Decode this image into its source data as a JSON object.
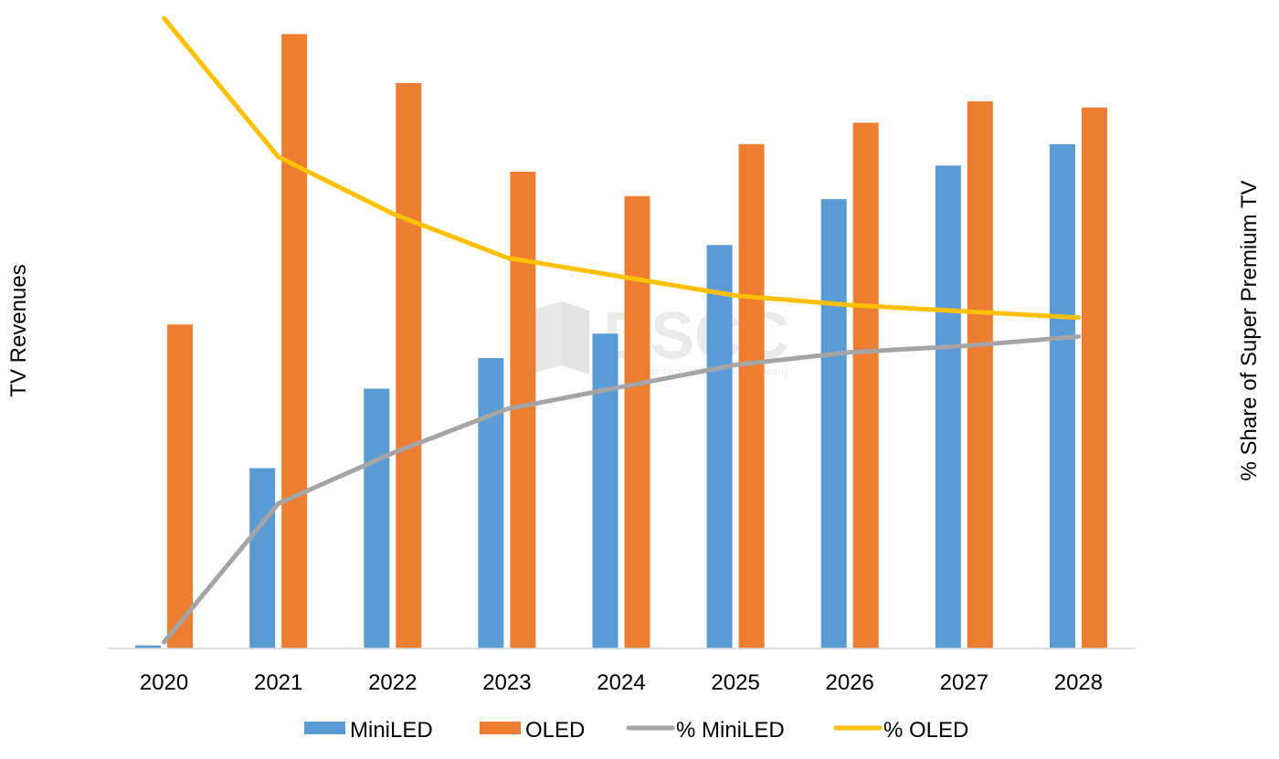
{
  "chart_data": {
    "type": "bar",
    "title": "",
    "categories": [
      "2020",
      "2021",
      "2022",
      "2023",
      "2024",
      "2025",
      "2026",
      "2027",
      "2028"
    ],
    "ylabel": "TV Revenues",
    "y2label": "% Share of Super Premium TV",
    "y_ticks_shown": false,
    "ylim": [
      0,
      100
    ],
    "y2lim": [
      0,
      100
    ],
    "grid": false,
    "legend_position": "bottom",
    "series": [
      {
        "name": "MiniLED",
        "kind": "bar",
        "axis": "left",
        "color": "#5B9BD5",
        "values": [
          0.5,
          29.5,
          42.5,
          47.5,
          51.5,
          66,
          73.5,
          79,
          82.5
        ]
      },
      {
        "name": "OLED",
        "kind": "bar",
        "axis": "left",
        "color": "#ED7D31",
        "values": [
          53,
          100.5,
          92.5,
          78,
          74,
          82.5,
          86,
          89.5,
          88.5
        ]
      },
      {
        "name": "% MiniLED",
        "kind": "line",
        "axis": "right",
        "color": "#A5A5A5",
        "values": [
          1,
          23,
          31,
          38,
          41.5,
          45,
          47,
          48,
          49.5
        ]
      },
      {
        "name": "% OLED",
        "kind": "line",
        "axis": "right",
        "color": "#FFC000",
        "values": [
          100,
          78,
          69,
          62,
          59,
          56,
          54.5,
          53.5,
          52.5
        ]
      }
    ],
    "watermark": {
      "text": "DSCC",
      "subtext": "A Counterpoint Research Company"
    }
  }
}
